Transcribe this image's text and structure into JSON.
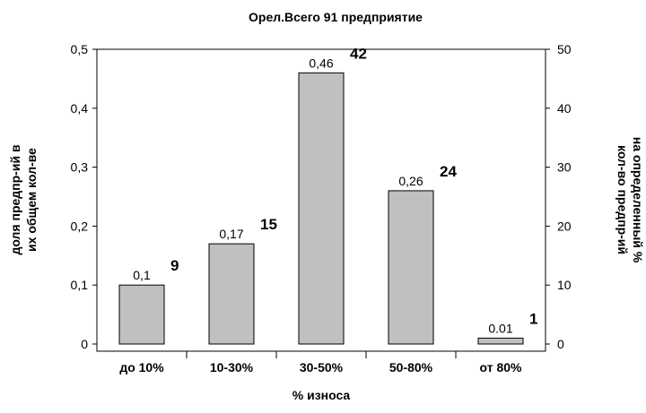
{
  "chart_data": {
    "type": "bar",
    "title": "Орел.Всего 91 предприятие",
    "xlabel": "% износа",
    "ylabel_left": [
      "доля предпр-ий в",
      "их общем кол-ве"
    ],
    "ylabel_right": [
      "кол-во предпр-ий",
      "на определенный %"
    ],
    "categories": [
      "до 10%",
      "10-30%",
      "30-50%",
      "50-80%",
      "от 80%"
    ],
    "series": [
      {
        "values": [
          0.1,
          0.17,
          0.46,
          0.26,
          0.01
        ],
        "axis": "left"
      },
      {
        "values": [
          9,
          15,
          42,
          24,
          1
        ],
        "axis": "right"
      }
    ],
    "value_labels": [
      "0,1",
      "0,17",
      "0,46",
      "0,26",
      "0.01"
    ],
    "count_labels": [
      "9",
      "15",
      "42",
      "24",
      "1"
    ],
    "ylim_left": [
      0,
      0.5
    ],
    "ylim_right": [
      0,
      50
    ],
    "yticks_left": [
      "0",
      "0,1",
      "0,2",
      "0,3",
      "0,4",
      "0,5"
    ],
    "yticks_right": [
      "0",
      "10",
      "20",
      "30",
      "40",
      "50"
    ],
    "bar_color": "#c0c0c0",
    "grid": false,
    "legend": "none"
  }
}
